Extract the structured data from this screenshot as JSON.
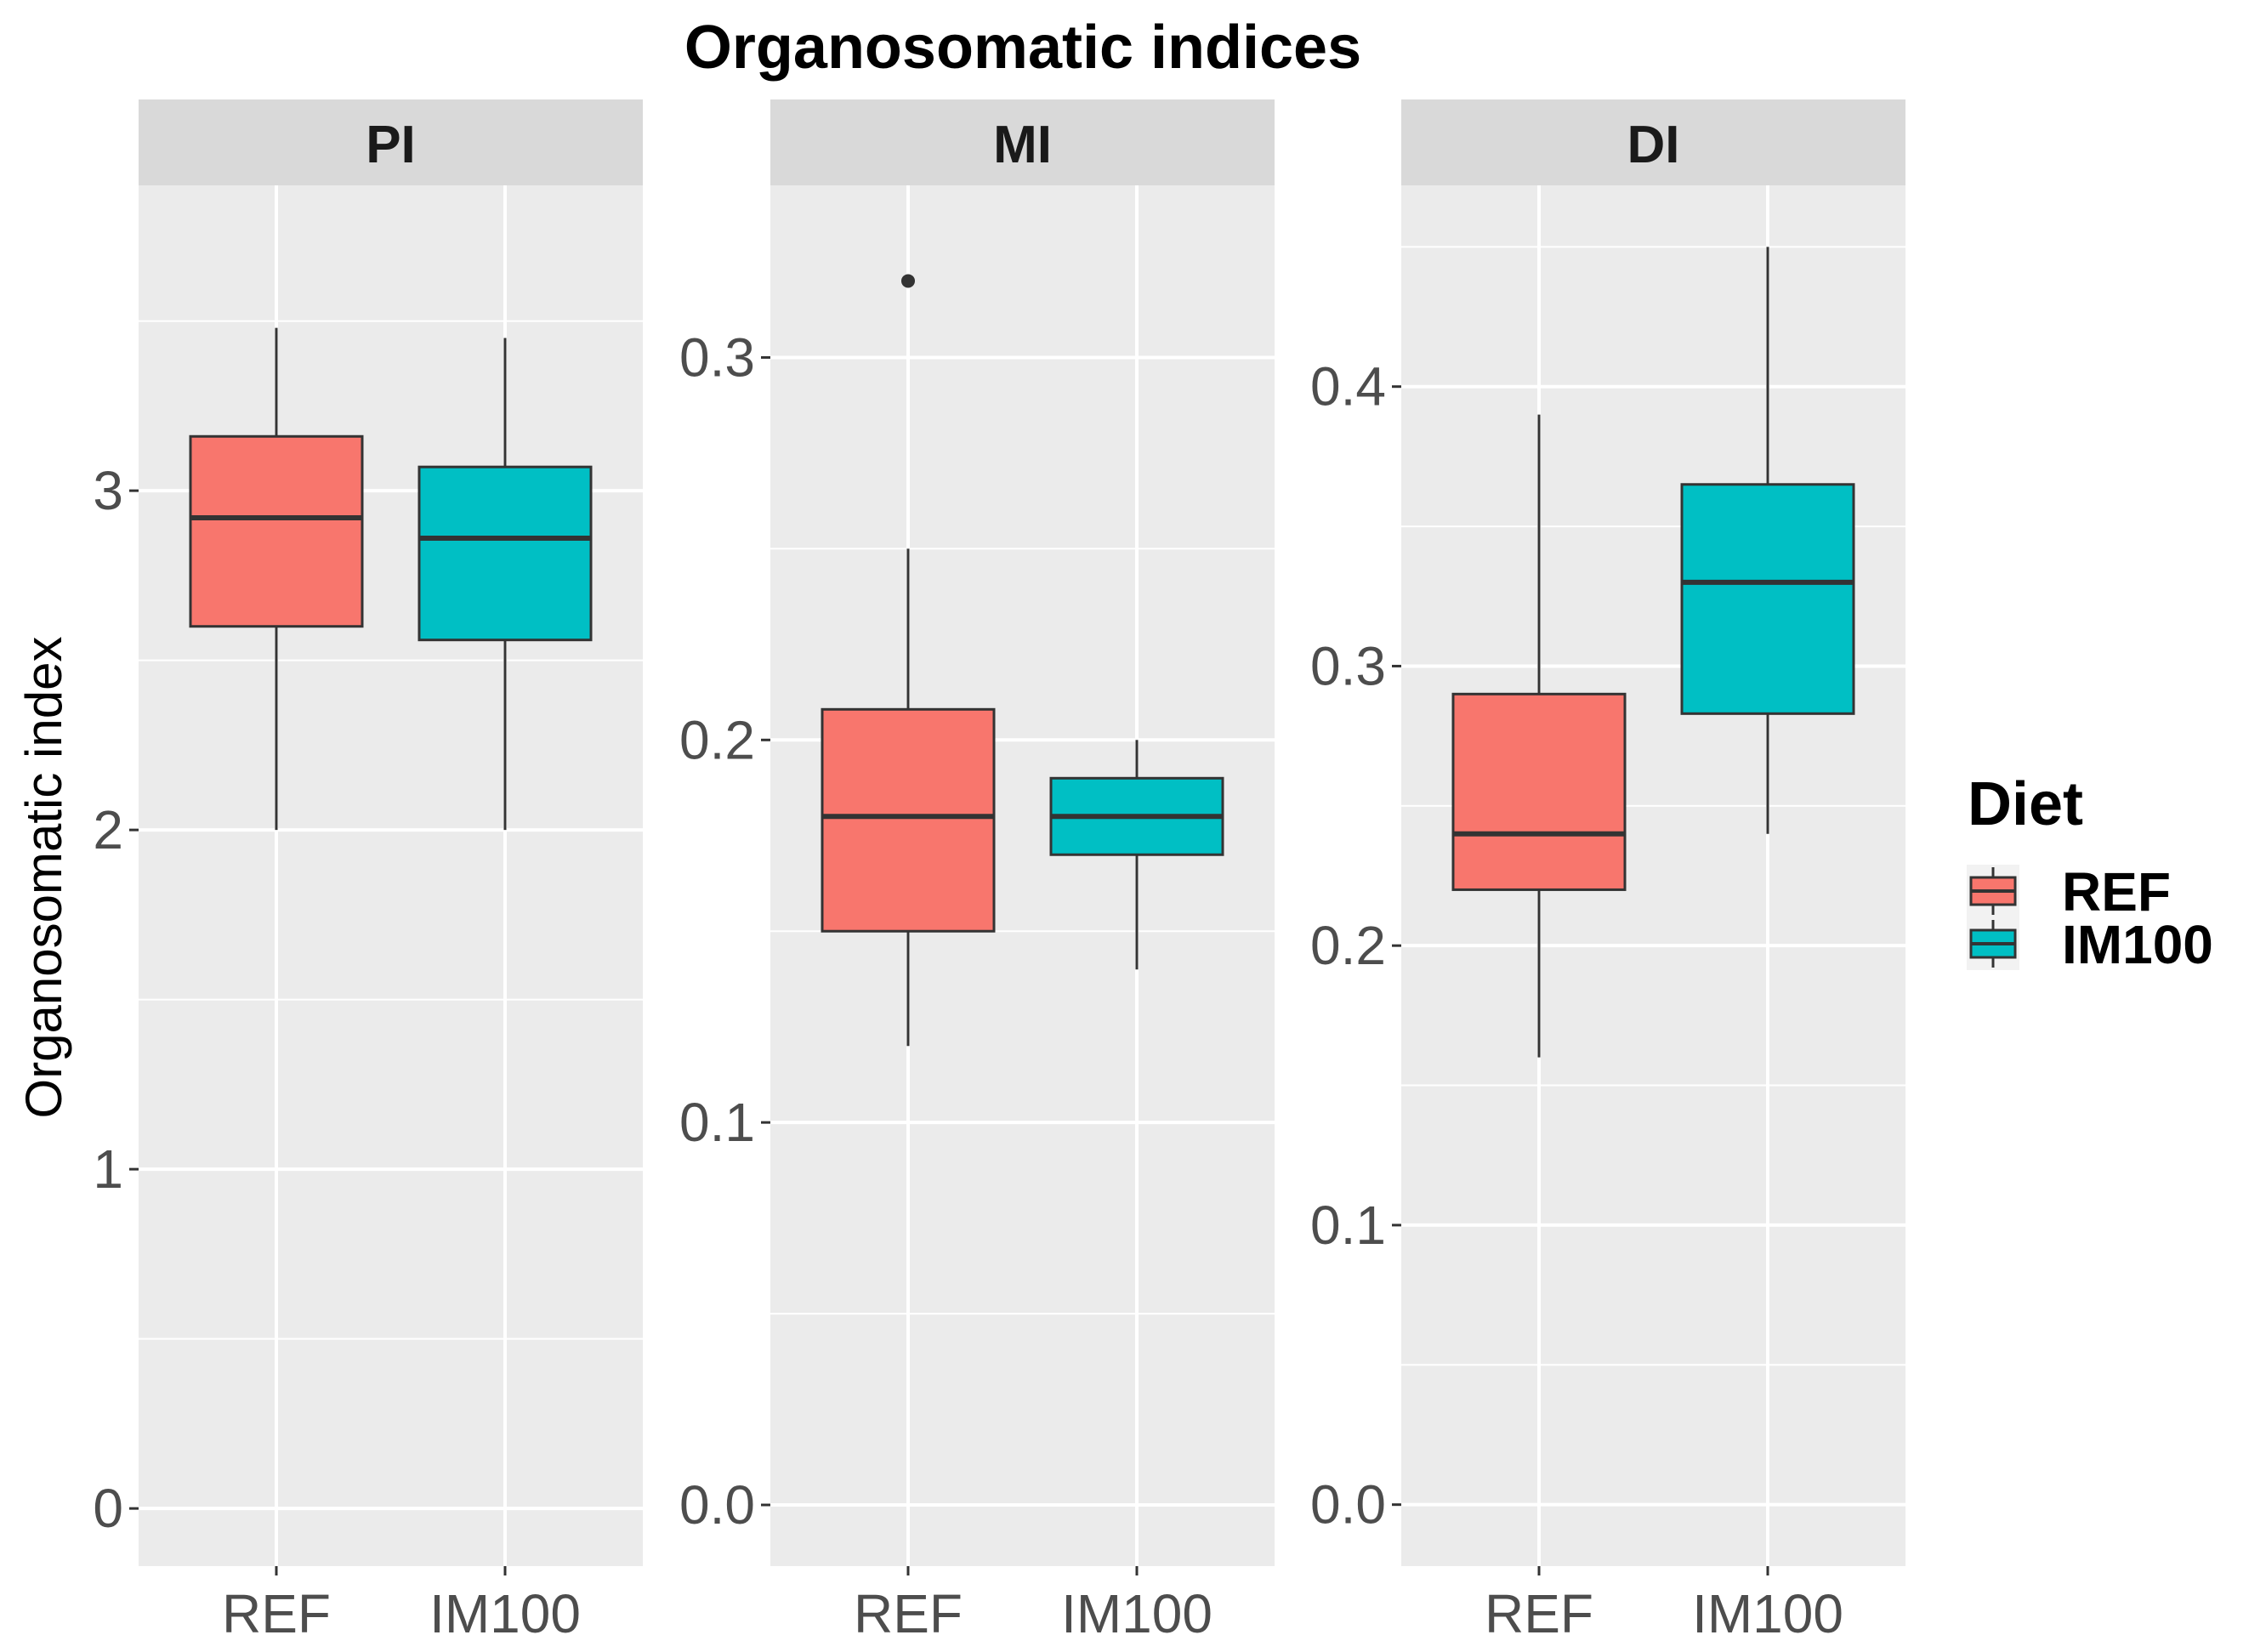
{
  "chart_data": {
    "type": "box",
    "title": "Organosomatic indices",
    "ylabel": "Organosomatic index",
    "xlabel": "",
    "categories": [
      "REF",
      "IM100"
    ],
    "legend": {
      "title": "Diet",
      "position": "right",
      "entries": [
        {
          "label": "REF",
          "color": "#F8766D"
        },
        {
          "label": "IM100",
          "color": "#00BFC4"
        }
      ]
    },
    "grid": true,
    "facets": [
      {
        "name": "PI",
        "ylim": [
          -0.17,
          3.9
        ],
        "ticks": [
          0,
          1,
          2,
          3
        ],
        "tick_labels": [
          "0",
          "1",
          "2",
          "3"
        ],
        "boxes": [
          {
            "group": "REF",
            "min": 2.0,
            "q1": 2.6,
            "median": 2.92,
            "q3": 3.16,
            "max": 3.48,
            "outliers": []
          },
          {
            "group": "IM100",
            "min": 2.0,
            "q1": 2.56,
            "median": 2.86,
            "q3": 3.07,
            "max": 3.45,
            "outliers": []
          }
        ]
      },
      {
        "name": "MI",
        "ylim": [
          -0.016,
          0.345
        ],
        "ticks": [
          0.0,
          0.1,
          0.2,
          0.3
        ],
        "tick_labels": [
          "0.0",
          "0.1",
          "0.2",
          "0.3"
        ],
        "boxes": [
          {
            "group": "REF",
            "min": 0.12,
            "q1": 0.15,
            "median": 0.18,
            "q3": 0.208,
            "max": 0.25,
            "outliers": [
              0.32
            ]
          },
          {
            "group": "IM100",
            "min": 0.14,
            "q1": 0.17,
            "median": 0.18,
            "q3": 0.19,
            "max": 0.2,
            "outliers": []
          }
        ]
      },
      {
        "name": "DI",
        "ylim": [
          -0.022,
          0.472
        ],
        "ticks": [
          0.0,
          0.1,
          0.2,
          0.3,
          0.4
        ],
        "tick_labels": [
          "0.0",
          "0.1",
          "0.2",
          "0.3",
          "0.4"
        ],
        "boxes": [
          {
            "group": "REF",
            "min": 0.16,
            "q1": 0.22,
            "median": 0.24,
            "q3": 0.29,
            "max": 0.39,
            "outliers": []
          },
          {
            "group": "IM100",
            "min": 0.24,
            "q1": 0.283,
            "median": 0.33,
            "q3": 0.365,
            "max": 0.45,
            "outliers": []
          }
        ]
      }
    ]
  }
}
